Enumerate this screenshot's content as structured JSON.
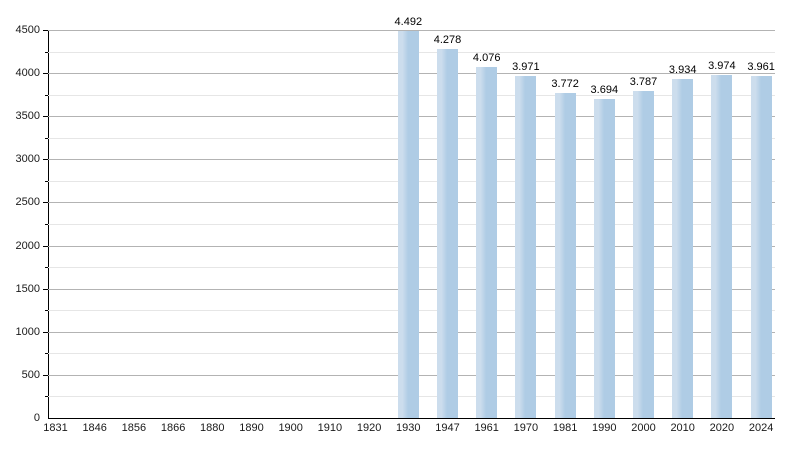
{
  "chart_data": {
    "type": "bar",
    "title": "",
    "xlabel": "",
    "ylabel": "",
    "categories": [
      "1831",
      "1846",
      "1856",
      "1866",
      "1880",
      "1890",
      "1900",
      "1910",
      "1920",
      "1930",
      "1947",
      "1961",
      "1970",
      "1981",
      "1990",
      "2000",
      "2010",
      "2020",
      "2024"
    ],
    "values": [
      null,
      null,
      null,
      null,
      null,
      null,
      null,
      null,
      null,
      4492,
      4278,
      4076,
      3971,
      3772,
      3694,
      3787,
      3934,
      3974,
      3961
    ],
    "value_labels": [
      null,
      null,
      null,
      null,
      null,
      null,
      null,
      null,
      null,
      "4.492",
      "4.278",
      "4.076",
      "3.971",
      "3.772",
      "3.694",
      "3.787",
      "3.934",
      "3.974",
      "3.961"
    ],
    "ylim": [
      0,
      4500
    ],
    "ytick_step": 500,
    "ytick_minor_step": 250,
    "grid": "on",
    "legend": "none",
    "colors": {
      "bar_fill": "#afcce5",
      "bar_highlight": "#ccdded",
      "major_grid": "#b3b3b3",
      "minor_grid": "#e6e6e6",
      "axis": "#000000",
      "text": "#1a1a1a"
    }
  }
}
